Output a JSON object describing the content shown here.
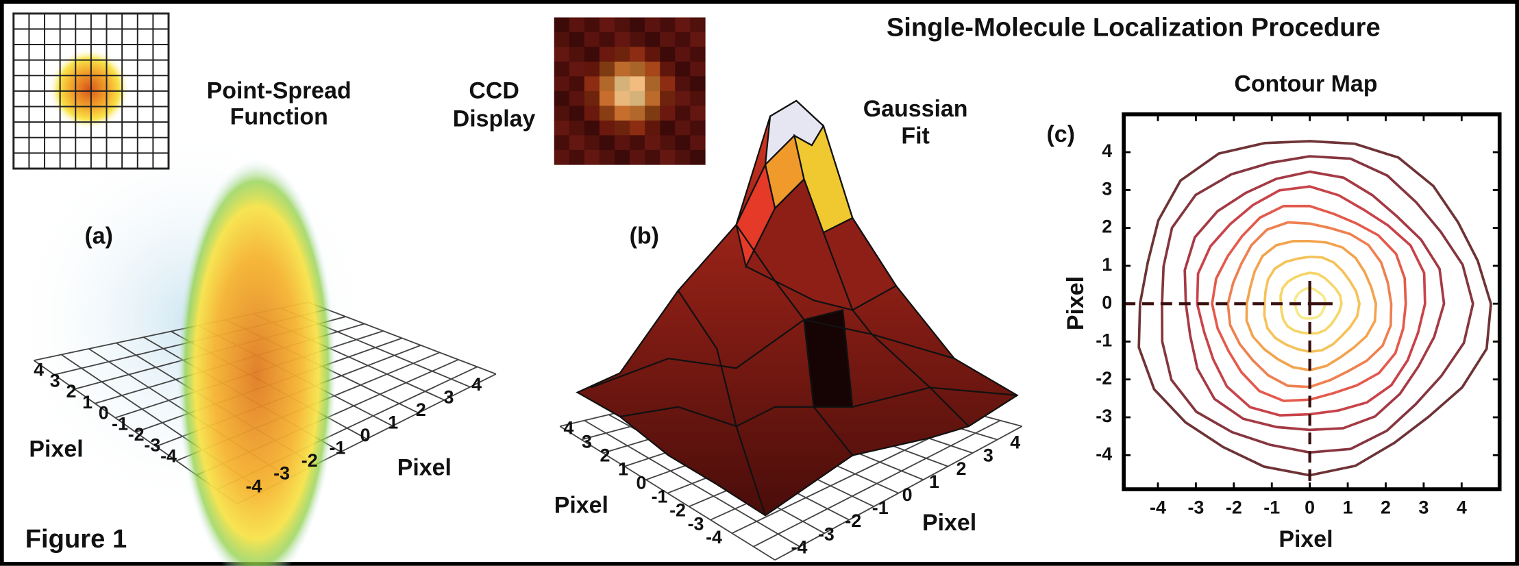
{
  "title": "Single-Molecule Localization Procedure",
  "figure_label": "Figure 1",
  "panel_a": {
    "label": "(a)",
    "inset_caption": [
      "Point-Spread",
      "Function"
    ],
    "left_axis_label": "Pixel",
    "right_axis_label": "Pixel",
    "left_ticks": [
      4,
      3,
      2,
      1,
      0,
      -1,
      -2,
      -3,
      -4
    ],
    "right_ticks": [
      -4,
      -3,
      -2,
      -1,
      0,
      1,
      2,
      3,
      4
    ]
  },
  "panel_b": {
    "label": "(b)",
    "inset_caption": [
      "CCD",
      "Display"
    ],
    "surface_caption": [
      "Gaussian",
      "Fit"
    ],
    "left_axis_label": "Pixel",
    "right_axis_label": "Pixel",
    "left_ticks": [
      4,
      3,
      2,
      1,
      0,
      -1,
      -2,
      -3,
      -4
    ],
    "right_ticks": [
      -4,
      -3,
      -2,
      -1,
      0,
      1,
      2,
      3,
      4
    ]
  },
  "panel_c": {
    "label": "(c)",
    "title": "Contour Map",
    "x_label": "Pixel",
    "y_label": "Pixel",
    "xlim": [
      -4.9,
      5
    ],
    "ylim": [
      -4.9,
      5
    ],
    "xticks": [
      -4,
      -3,
      -2,
      -1,
      0,
      1,
      2,
      3,
      4
    ],
    "yticks": [
      -4,
      -3,
      -2,
      -1,
      0,
      1,
      2,
      3,
      4
    ]
  }
}
